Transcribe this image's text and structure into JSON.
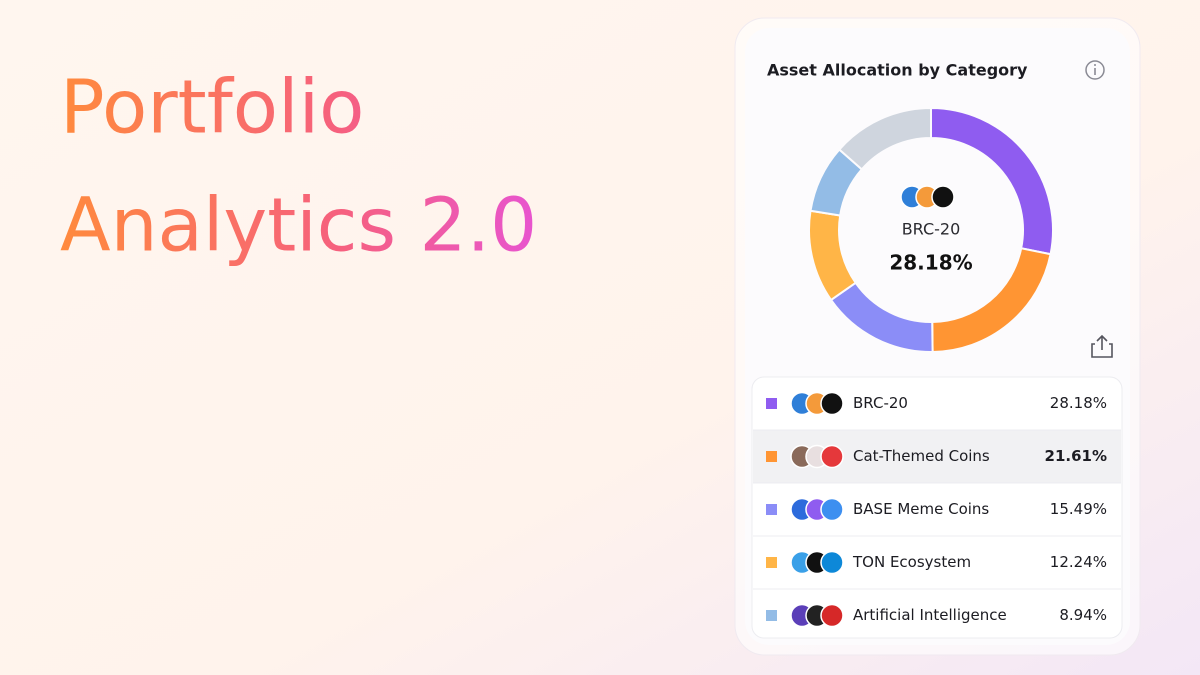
{
  "headline": [
    "Portfolio",
    "Analytics 2.0"
  ],
  "card": {
    "title": "Asset Allocation by Category"
  },
  "chart_data": {
    "type": "pie",
    "categories": [
      "BRC-20",
      "Cat-Themed Coins",
      "BASE Meme Coins",
      "TON Ecosystem",
      "Artificial Intelligence",
      null
    ],
    "values": [
      28.18,
      21.61,
      15.49,
      12.24,
      8.94,
      13.54
    ],
    "value_labels": [
      "28.18%",
      "21.61%",
      "15.49%",
      "12.24%",
      "8.94%",
      null
    ],
    "colors": [
      "#8f5cf0",
      "#ff9533",
      "#8b8df7",
      "#ffb547",
      "#93bce6",
      "#cfd5de"
    ]
  }
}
